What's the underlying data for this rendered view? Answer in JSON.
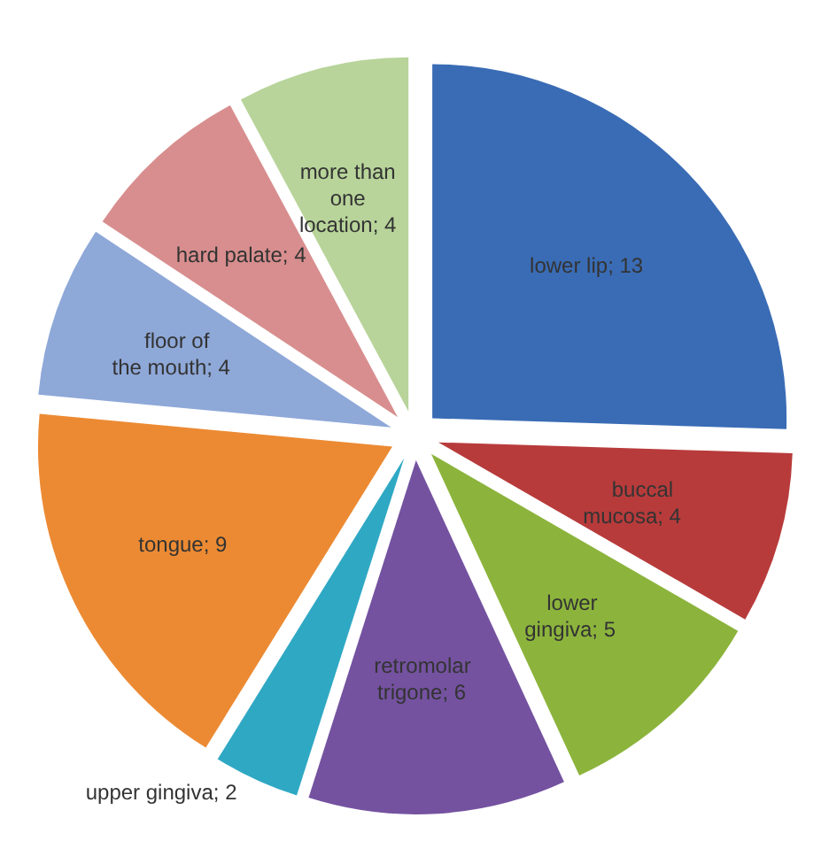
{
  "chart_data": {
    "type": "pie",
    "categories": [
      "lower lip",
      "buccal mucosa",
      "lower gingiva",
      "retromolar trigone",
      "upper gingiva",
      "tongue",
      "floor of the mouth",
      "hard palate",
      "more than one location"
    ],
    "values": [
      13,
      4,
      5,
      6,
      2,
      9,
      4,
      4,
      4
    ],
    "value_labels": [
      "; 13",
      "; 4",
      "; 5",
      "; 6",
      "; 2",
      "; 9",
      "; 4",
      "; 4",
      "; 4"
    ],
    "colors": [
      "#3a6cb5",
      "#b83b3b",
      "#8cb43c",
      "#7452a0",
      "#2fa8c4",
      "#ec8a33",
      "#8ea8d8",
      "#d88e8e",
      "#b8d49a"
    ],
    "legend": false
  }
}
